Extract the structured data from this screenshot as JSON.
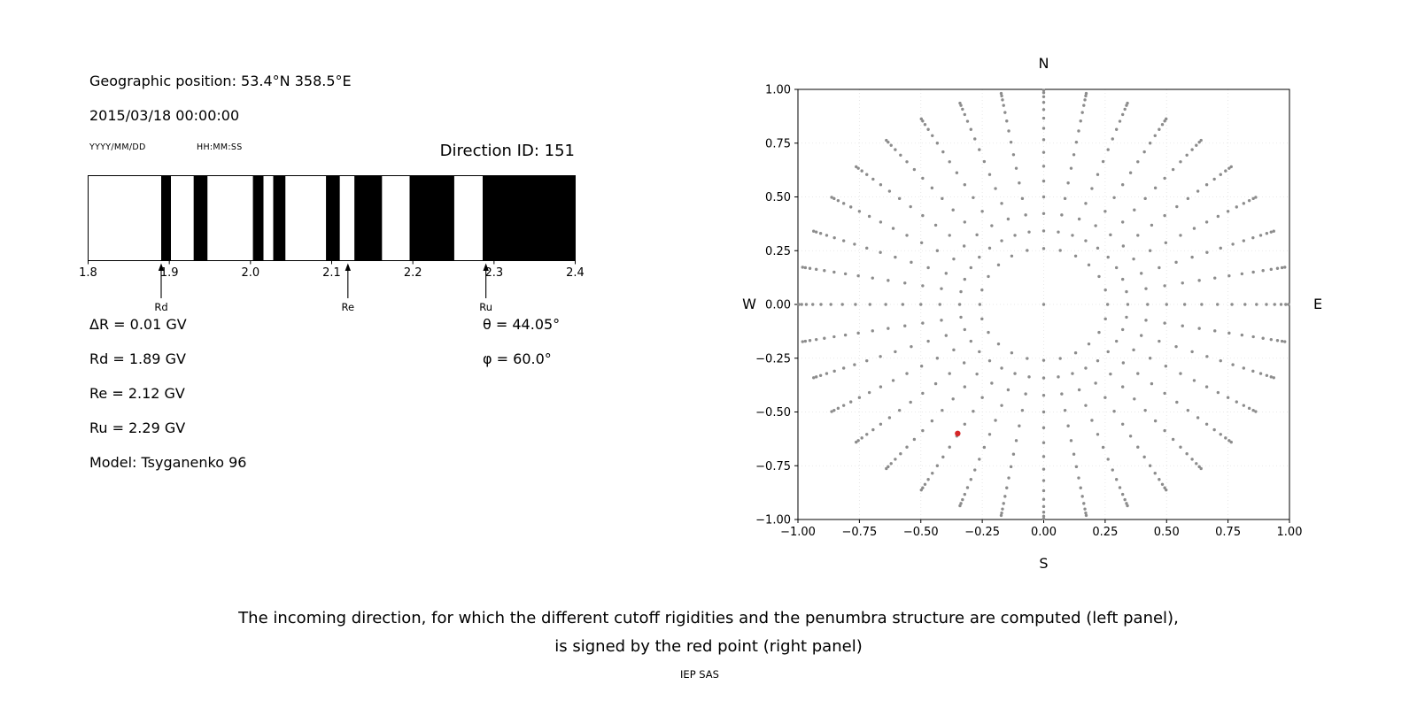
{
  "page": {
    "background": "#ffffff"
  },
  "left_panel": {
    "geo_position": "Geographic position: 53.4°N 358.5°E",
    "datetime": "2015/03/18 00:00:00",
    "date_format_label": "YYYY/MM/DD",
    "time_format_label": "HH:MM:SS",
    "direction_id_label": "Direction ID: 151",
    "params": {
      "delta_r": "ΔR = 0.01 GV",
      "rd": "Rd = 1.89 GV",
      "re": "Re = 2.12 GV",
      "ru": "Ru = 2.29 GV",
      "model": "Model: Tsyganenko 96",
      "theta": "θ = 44.05°",
      "phi": "φ = 60.0°"
    }
  },
  "caption": {
    "line1": "The incoming direction, for which the different cutoff rigidities and the penumbra structure are computed (left panel),",
    "line2": "is signed by the red point (right panel)"
  },
  "footer": "IEP SAS",
  "chart_data": [
    {
      "type": "bar",
      "name": "penumbra-structure",
      "title": "",
      "xlabel": "",
      "xlim": [
        1.8,
        2.4
      ],
      "xticks": [
        1.8,
        1.9,
        2.0,
        2.1,
        2.2,
        2.3,
        2.4
      ],
      "xtick_labels": [
        "1.8",
        "1.9",
        "2.0",
        "2.1",
        "2.2",
        "2.3",
        "2.4"
      ],
      "band_color": "#000000",
      "allowed_bands_gv": [
        [
          1.89,
          1.902
        ],
        [
          1.93,
          1.947
        ],
        [
          2.003,
          2.016
        ],
        [
          2.028,
          2.043
        ],
        [
          2.093,
          2.11
        ],
        [
          2.128,
          2.162
        ],
        [
          2.196,
          2.251
        ],
        [
          2.286,
          2.4
        ]
      ],
      "markers": [
        {
          "label": "Rd",
          "value_gv": 1.89
        },
        {
          "label": "Re",
          "value_gv": 2.12
        },
        {
          "label": "Ru",
          "value_gv": 2.29
        }
      ]
    },
    {
      "type": "scatter",
      "name": "incoming-direction-skymap",
      "xlim": [
        -1,
        1
      ],
      "ylim": [
        -1,
        1
      ],
      "xticks": [
        -1,
        -0.75,
        -0.5,
        -0.25,
        0,
        0.25,
        0.5,
        0.75,
        1
      ],
      "xtick_labels": [
        "−1.00",
        "−0.75",
        "−0.50",
        "−0.25",
        "0.00",
        "0.25",
        "0.50",
        "0.75",
        "1.00"
      ],
      "yticks": [
        1,
        0.75,
        0.5,
        0.25,
        0,
        -0.25,
        -0.5,
        -0.75,
        -1
      ],
      "ytick_labels": [
        "1.00",
        "0.75",
        "0.50",
        "0.25",
        "0.00",
        "−0.25",
        "−0.50",
        "−0.75",
        "−1.00"
      ],
      "direction_labels": {
        "top": "N",
        "bottom": "S",
        "left": "W",
        "right": "E"
      },
      "grid": true,
      "grid_color": "#e2e2e2",
      "dot_color": "#8c8c8c",
      "pattern": {
        "center_point": [
          0,
          0
        ],
        "inner_ring": {
          "radius": 0.26,
          "azimuth_step_deg": 15
        },
        "spokes": {
          "azimuth_step_deg": 10,
          "zenith_deg": [
            20,
            25,
            30,
            35,
            40,
            45,
            50,
            55,
            60,
            65,
            70,
            75,
            80,
            85
          ],
          "radius_rule": "sin(zenith)"
        }
      },
      "red_point": {
        "x": -0.35,
        "y": -0.6,
        "theta_deg": 44.05,
        "phi_deg": 60.0,
        "color": "#d62728"
      }
    }
  ]
}
